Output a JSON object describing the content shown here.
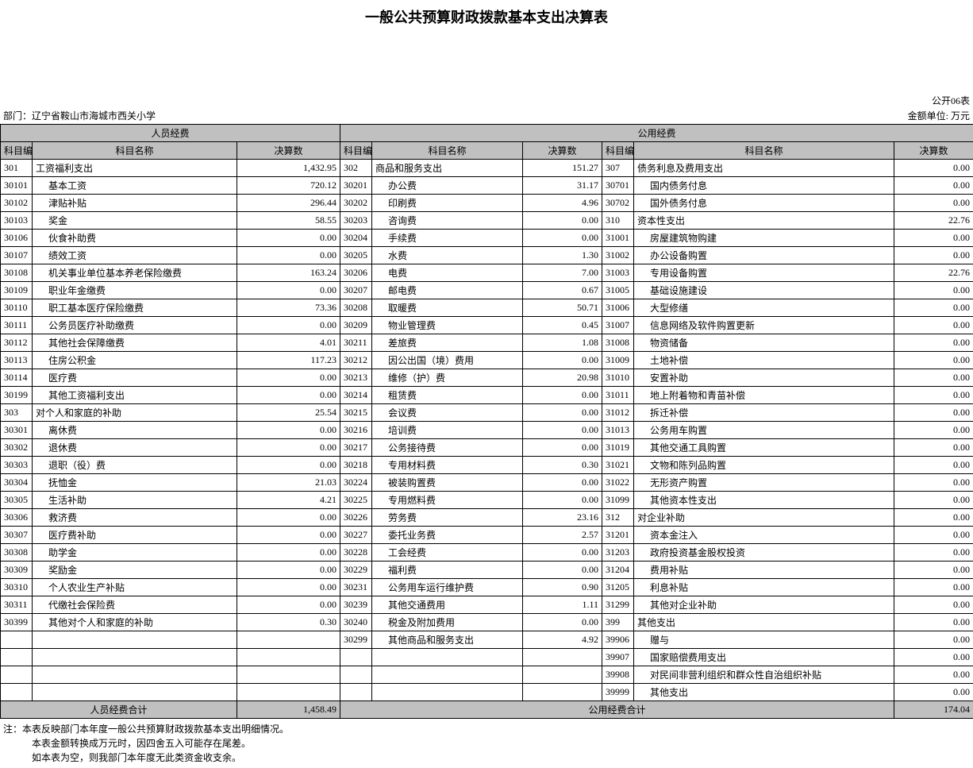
{
  "title": "一般公共预算财政拨款基本支出决算表",
  "table_code": "公开06表",
  "dept_label": "部门：",
  "dept": "辽宁省鞍山市海城市西关小学",
  "unit": "金额单位: 万元",
  "sections": {
    "personnel": "人员经费",
    "public": "公用经费"
  },
  "headers": {
    "code": "科目编码",
    "name": "科目名称",
    "value": "决算数"
  },
  "col_widths": {
    "code": 40,
    "name": 244,
    "num": 130,
    "code2": 40,
    "name2": 180,
    "num2": 100,
    "code3": 40,
    "name3": 320,
    "num3": 100
  },
  "personnel": [
    {
      "code": "301",
      "name": "工资福利支出",
      "val": "1,432.95",
      "parent": true
    },
    {
      "code": "30101",
      "name": "基本工资",
      "val": "720.12"
    },
    {
      "code": "30102",
      "name": "津贴补贴",
      "val": "296.44"
    },
    {
      "code": "30103",
      "name": "奖金",
      "val": "58.55"
    },
    {
      "code": "30106",
      "name": "伙食补助费",
      "val": "0.00"
    },
    {
      "code": "30107",
      "name": "绩效工资",
      "val": "0.00"
    },
    {
      "code": "30108",
      "name": "机关事业单位基本养老保险缴费",
      "val": "163.24"
    },
    {
      "code": "30109",
      "name": "职业年金缴费",
      "val": "0.00"
    },
    {
      "code": "30110",
      "name": "职工基本医疗保险缴费",
      "val": "73.36"
    },
    {
      "code": "30111",
      "name": "公务员医疗补助缴费",
      "val": "0.00"
    },
    {
      "code": "30112",
      "name": "其他社会保障缴费",
      "val": "4.01"
    },
    {
      "code": "30113",
      "name": "住房公积金",
      "val": "117.23"
    },
    {
      "code": "30114",
      "name": "医疗费",
      "val": "0.00"
    },
    {
      "code": "30199",
      "name": "其他工资福利支出",
      "val": "0.00"
    },
    {
      "code": "303",
      "name": "对个人和家庭的补助",
      "val": "25.54",
      "parent": true
    },
    {
      "code": "30301",
      "name": "离休费",
      "val": "0.00"
    },
    {
      "code": "30302",
      "name": "退休费",
      "val": "0.00"
    },
    {
      "code": "30303",
      "name": "退职（役）费",
      "val": "0.00"
    },
    {
      "code": "30304",
      "name": "抚恤金",
      "val": "21.03"
    },
    {
      "code": "30305",
      "name": "生活补助",
      "val": "4.21"
    },
    {
      "code": "30306",
      "name": "救济费",
      "val": "0.00"
    },
    {
      "code": "30307",
      "name": "医疗费补助",
      "val": "0.00"
    },
    {
      "code": "30308",
      "name": "助学金",
      "val": "0.00"
    },
    {
      "code": "30309",
      "name": "奖励金",
      "val": "0.00"
    },
    {
      "code": "30310",
      "name": "个人农业生产补贴",
      "val": "0.00"
    },
    {
      "code": "30311",
      "name": "代缴社会保险费",
      "val": "0.00"
    },
    {
      "code": "30399",
      "name": "其他对个人和家庭的补助",
      "val": "0.30"
    }
  ],
  "public1": [
    {
      "code": "302",
      "name": "商品和服务支出",
      "val": "151.27",
      "parent": true
    },
    {
      "code": "30201",
      "name": "办公费",
      "val": "31.17"
    },
    {
      "code": "30202",
      "name": "印刷费",
      "val": "4.96"
    },
    {
      "code": "30203",
      "name": "咨询费",
      "val": "0.00"
    },
    {
      "code": "30204",
      "name": "手续费",
      "val": "0.00"
    },
    {
      "code": "30205",
      "name": "水费",
      "val": "1.30"
    },
    {
      "code": "30206",
      "name": "电费",
      "val": "7.00"
    },
    {
      "code": "30207",
      "name": "邮电费",
      "val": "0.67"
    },
    {
      "code": "30208",
      "name": "取暖费",
      "val": "50.71"
    },
    {
      "code": "30209",
      "name": "物业管理费",
      "val": "0.45"
    },
    {
      "code": "30211",
      "name": "差旅费",
      "val": "1.08"
    },
    {
      "code": "30212",
      "name": "因公出国（境）费用",
      "val": "0.00"
    },
    {
      "code": "30213",
      "name": "维修（护）费",
      "val": "20.98"
    },
    {
      "code": "30214",
      "name": "租赁费",
      "val": "0.00"
    },
    {
      "code": "30215",
      "name": "会议费",
      "val": "0.00"
    },
    {
      "code": "30216",
      "name": "培训费",
      "val": "0.00"
    },
    {
      "code": "30217",
      "name": "公务接待费",
      "val": "0.00"
    },
    {
      "code": "30218",
      "name": "专用材料费",
      "val": "0.30"
    },
    {
      "code": "30224",
      "name": "被装购置费",
      "val": "0.00"
    },
    {
      "code": "30225",
      "name": "专用燃料费",
      "val": "0.00"
    },
    {
      "code": "30226",
      "name": "劳务费",
      "val": "23.16"
    },
    {
      "code": "30227",
      "name": "委托业务费",
      "val": "2.57"
    },
    {
      "code": "30228",
      "name": "工会经费",
      "val": "0.00"
    },
    {
      "code": "30229",
      "name": "福利费",
      "val": "0.00"
    },
    {
      "code": "30231",
      "name": "公务用车运行维护费",
      "val": "0.90"
    },
    {
      "code": "30239",
      "name": "其他交通费用",
      "val": "1.11"
    },
    {
      "code": "30240",
      "name": "税金及附加费用",
      "val": "0.00"
    },
    {
      "code": "30299",
      "name": "其他商品和服务支出",
      "val": "4.92"
    }
  ],
  "public2": [
    {
      "code": "307",
      "name": "债务利息及费用支出",
      "val": "0.00",
      "parent": true
    },
    {
      "code": "30701",
      "name": "国内债务付息",
      "val": "0.00"
    },
    {
      "code": "30702",
      "name": "国外债务付息",
      "val": "0.00"
    },
    {
      "code": "310",
      "name": "资本性支出",
      "val": "22.76",
      "parent": true
    },
    {
      "code": "31001",
      "name": "房屋建筑物购建",
      "val": "0.00"
    },
    {
      "code": "31002",
      "name": "办公设备购置",
      "val": "0.00"
    },
    {
      "code": "31003",
      "name": "专用设备购置",
      "val": "22.76"
    },
    {
      "code": "31005",
      "name": "基础设施建设",
      "val": "0.00"
    },
    {
      "code": "31006",
      "name": "大型修缮",
      "val": "0.00"
    },
    {
      "code": "31007",
      "name": "信息网络及软件购置更新",
      "val": "0.00"
    },
    {
      "code": "31008",
      "name": "物资储备",
      "val": "0.00"
    },
    {
      "code": "31009",
      "name": "土地补偿",
      "val": "0.00"
    },
    {
      "code": "31010",
      "name": "安置补助",
      "val": "0.00"
    },
    {
      "code": "31011",
      "name": "地上附着物和青苗补偿",
      "val": "0.00"
    },
    {
      "code": "31012",
      "name": "拆迁补偿",
      "val": "0.00"
    },
    {
      "code": "31013",
      "name": "公务用车购置",
      "val": "0.00"
    },
    {
      "code": "31019",
      "name": "其他交通工具购置",
      "val": "0.00"
    },
    {
      "code": "31021",
      "name": "文物和陈列品购置",
      "val": "0.00"
    },
    {
      "code": "31022",
      "name": "无形资产购置",
      "val": "0.00"
    },
    {
      "code": "31099",
      "name": "其他资本性支出",
      "val": "0.00"
    },
    {
      "code": "312",
      "name": "对企业补助",
      "val": "0.00",
      "parent": true
    },
    {
      "code": "31201",
      "name": "资本金注入",
      "val": "0.00"
    },
    {
      "code": "31203",
      "name": "政府投资基金股权投资",
      "val": "0.00"
    },
    {
      "code": "31204",
      "name": "费用补贴",
      "val": "0.00"
    },
    {
      "code": "31205",
      "name": "利息补贴",
      "val": "0.00"
    },
    {
      "code": "31299",
      "name": "其他对企业补助",
      "val": "0.00"
    },
    {
      "code": "399",
      "name": "其他支出",
      "val": "0.00",
      "parent": true
    },
    {
      "code": "39906",
      "name": "赠与",
      "val": "0.00"
    },
    {
      "code": "39907",
      "name": "国家赔偿费用支出",
      "val": "0.00"
    },
    {
      "code": "39908",
      "name": "对民间非营利组织和群众性自治组织补贴",
      "val": "0.00"
    },
    {
      "code": "39999",
      "name": "其他支出",
      "val": "0.00"
    }
  ],
  "totals": {
    "personnel_label": "人员经费合计",
    "personnel_val": "1,458.49",
    "public_label": "公用经费合计",
    "public_val": "174.04"
  },
  "notes": [
    "注：本表反映部门本年度一般公共预算财政拨款基本支出明细情况。",
    "本表金额转换成万元时，因四舍五入可能存在尾差。",
    "如本表为空，则我部门本年度无此类资金收支余。"
  ]
}
